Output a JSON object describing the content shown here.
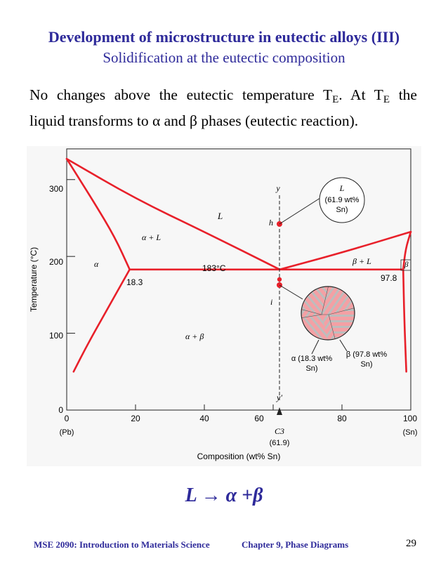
{
  "slide": {
    "title": "Development of microstructure in eutectic alloys (III)",
    "subtitle": "Solidification at the eutectic composition",
    "para_line1": "No changes above the eutectic temperature T",
    "para_sub1": "E",
    "para_line1b": ".  At T",
    "para_sub2": "E",
    "para_line1c": " the",
    "para_line2": "liquid transforms to α and β phases (eutectic reaction).",
    "equation": "L → α +β",
    "footer_course": "MSE 2090: Introduction to Materials Science",
    "footer_chapter": "Chapter 9, Phase Diagrams",
    "page_number": "29"
  },
  "colors": {
    "accent": "#2e2a9a",
    "phase_line": "#e8202a"
  },
  "chart_data": {
    "type": "phase-diagram",
    "xlabel": "Composition (wt% Sn)",
    "ylabel": "Temperature (°C)",
    "xlim": [
      0,
      100
    ],
    "ylim": [
      0,
      340
    ],
    "x_ticks": [
      "0",
      "20",
      "40",
      "60",
      "80",
      "100"
    ],
    "y_ticks": [
      "0",
      "100",
      "200",
      "300"
    ],
    "x_end_labels": [
      "(Pb)",
      "(Sn)"
    ],
    "eutectic_temperature_label": "183°C",
    "eutectic_composition": 61.9,
    "alpha_max_solubility": "18.3",
    "beta_max_solubility": "97.8",
    "region_labels": [
      "L",
      "α + L",
      "α",
      "β + L",
      "β",
      "α + β"
    ],
    "points": {
      "above": "h",
      "below": "i",
      "path_top": "y",
      "path_bottom": "y′"
    },
    "composition_marker": {
      "label": "C3",
      "value": "(61.9)"
    },
    "callouts": {
      "liquid": [
        "L",
        "(61.9 wt%",
        "Sn)"
      ],
      "alpha": [
        "α (18.3 wt%",
        "Sn)"
      ],
      "beta": [
        "β (97.8 wt%",
        "Sn)"
      ]
    },
    "curves": {
      "liquidus_left": [
        [
          0,
          327
        ],
        [
          20,
          275
        ],
        [
          40,
          232
        ],
        [
          61.9,
          183
        ]
      ],
      "solidus_left": [
        [
          0,
          327
        ],
        [
          8,
          270
        ],
        [
          14,
          225
        ],
        [
          18.3,
          183
        ]
      ],
      "solvus_left": [
        [
          18.3,
          183
        ],
        [
          11,
          125
        ],
        [
          6,
          85
        ],
        [
          2,
          50
        ]
      ],
      "liquidus_right": [
        [
          61.9,
          183
        ],
        [
          80,
          205
        ],
        [
          100,
          232
        ]
      ],
      "solidus_right": [
        [
          100,
          232
        ],
        [
          98.5,
          210
        ],
        [
          97.8,
          183
        ]
      ],
      "solvus_right": [
        [
          97.8,
          183
        ],
        [
          98.1,
          120
        ],
        [
          98.7,
          50
        ]
      ],
      "eutectic_line": [
        [
          18.3,
          183
        ],
        [
          97.8,
          183
        ]
      ]
    }
  }
}
